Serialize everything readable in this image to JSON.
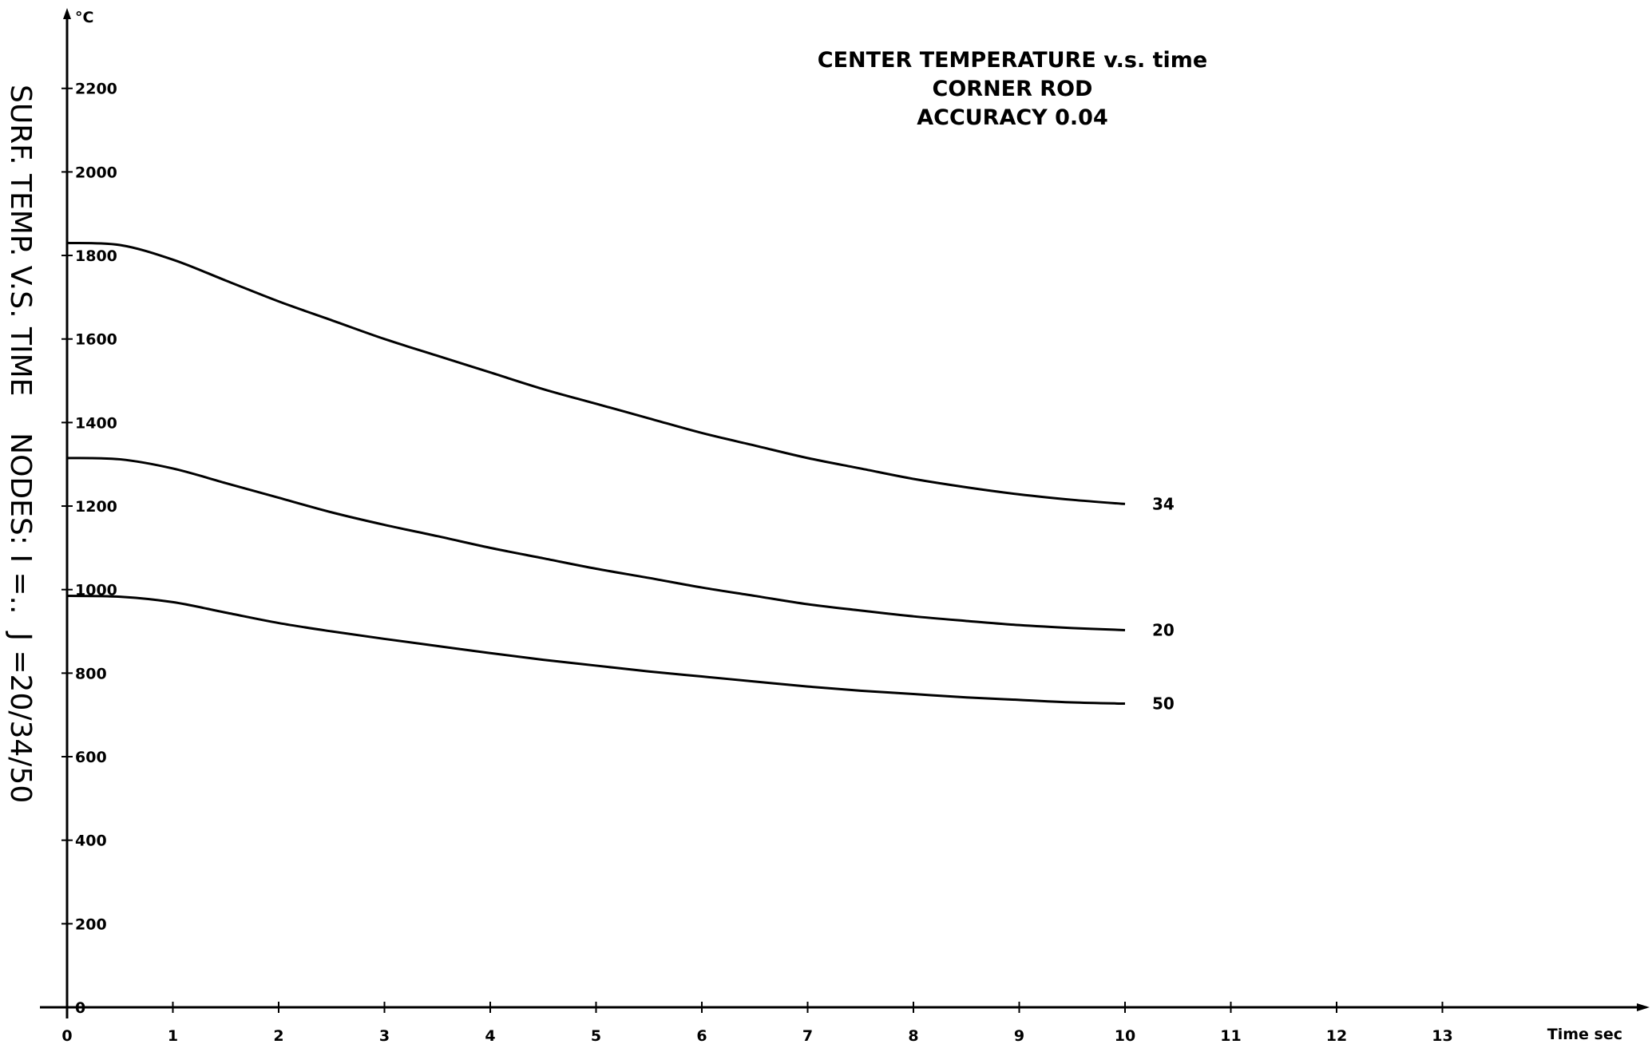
{
  "chart_data": {
    "type": "line",
    "title": [
      "CENTER TEMPERATURE v.s. time",
      "CORNER ROD",
      "ACCURACY 0.04"
    ],
    "side_label": "SURF. TEMP. V.S. TIME    NODES: I =..  J =20/34/50",
    "y_unit": "°C",
    "x_unit": "Time sec",
    "xlim": [
      0,
      14
    ],
    "ylim": [
      0,
      2400
    ],
    "x_ticks": [
      "0",
      "1",
      "2",
      "3",
      "4",
      "5",
      "6",
      "7",
      "8",
      "9",
      "10",
      "11",
      "12",
      "13"
    ],
    "y_ticks": [
      "0",
      "200",
      "400",
      "600",
      "800",
      "1000",
      "1200",
      "1400",
      "1600",
      "1800",
      "2000",
      "2200"
    ],
    "x": [
      0,
      0.5,
      1,
      1.5,
      2,
      2.5,
      3,
      3.5,
      4,
      4.5,
      5,
      5.5,
      6,
      6.5,
      7,
      7.5,
      8,
      8.5,
      9,
      9.5,
      10
    ],
    "series": [
      {
        "name": "34",
        "values": [
          1830,
          1825,
          1790,
          1740,
          1690,
          1645,
          1600,
          1560,
          1520,
          1480,
          1445,
          1410,
          1375,
          1345,
          1315,
          1290,
          1265,
          1245,
          1228,
          1215,
          1205
        ]
      },
      {
        "name": "20",
        "values": [
          1315,
          1312,
          1290,
          1255,
          1220,
          1185,
          1155,
          1128,
          1100,
          1075,
          1050,
          1028,
          1005,
          985,
          965,
          950,
          936,
          925,
          915,
          908,
          903
        ]
      },
      {
        "name": "50",
        "values": [
          985,
          983,
          970,
          945,
          920,
          900,
          882,
          865,
          848,
          832,
          818,
          804,
          792,
          780,
          768,
          758,
          750,
          742,
          736,
          730,
          727
        ]
      }
    ],
    "grid": false,
    "legend": "none"
  }
}
